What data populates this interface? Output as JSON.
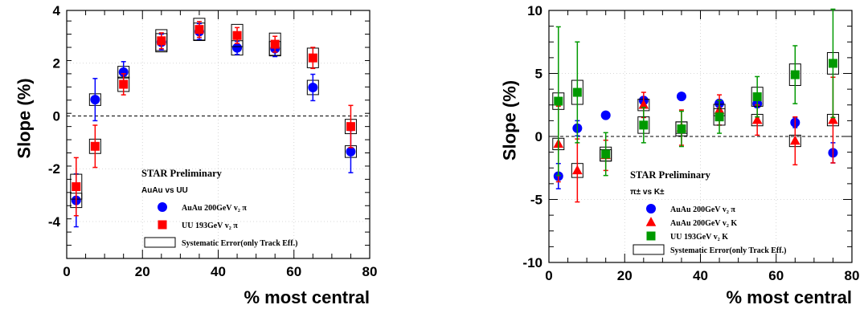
{
  "chart_data": [
    {
      "type": "scatter",
      "xlabel": "% most central",
      "ylabel": "Slope (%)",
      "xlim": [
        0,
        80
      ],
      "ylim": [
        -5.4,
        4
      ],
      "xticks": [
        "0",
        "20",
        "40",
        "60",
        "80"
      ],
      "yticks": [
        "-4",
        "-2",
        "0",
        "2",
        "4"
      ],
      "legend": {
        "title": "STAR Preliminary",
        "subtitle": "AuAu vs UU",
        "placement": "bottom-center",
        "items": [
          {
            "label": "AuAu 200GeV v₂ π",
            "marker": "circle",
            "color": "#0000ff"
          },
          {
            "label": "UU 193GeV v₂ π",
            "marker": "square",
            "color": "#ff0000"
          },
          {
            "label": "Systematic Error(only Track Eff.)",
            "marker": "box",
            "color": "#000000"
          }
        ]
      },
      "series": [
        {
          "name": "AuAu 200GeV v₂ π",
          "marker": "circle",
          "color": "#0000ff",
          "x": [
            2.5,
            7.5,
            15,
            25,
            35,
            45,
            55,
            65,
            75
          ],
          "y": [
            -3.2,
            0.62,
            1.66,
            2.8,
            3.2,
            2.58,
            2.55,
            1.08,
            -1.35
          ],
          "err": [
            1.0,
            0.8,
            0.4,
            0.3,
            0.3,
            0.25,
            0.3,
            0.5,
            0.8
          ],
          "sys": [
            0.15,
            0.1,
            0.1,
            0.2,
            0.2,
            0.15,
            0.15,
            0.15,
            0.1
          ]
        },
        {
          "name": "UU 193GeV v₂ π",
          "marker": "square",
          "color": "#ff0000",
          "x": [
            2.5,
            7.5,
            15,
            25,
            35,
            45,
            55,
            65,
            75
          ],
          "y": [
            -2.68,
            -1.15,
            1.2,
            2.85,
            3.28,
            3.05,
            2.72,
            2.2,
            -0.4
          ],
          "err": [
            1.1,
            0.8,
            0.4,
            0.3,
            0.3,
            0.3,
            0.3,
            0.4,
            0.8
          ],
          "sys": [
            0.35,
            0.15,
            0.15,
            0.3,
            0.3,
            0.3,
            0.3,
            0.25,
            0.15
          ]
        }
      ]
    },
    {
      "type": "scatter",
      "xlabel": "% most central",
      "ylabel": "Slope (%)",
      "xlim": [
        0,
        80
      ],
      "ylim": [
        -10,
        10
      ],
      "xticks": [
        "0",
        "20",
        "40",
        "60",
        "80"
      ],
      "yticks": [
        "-10",
        "-5",
        "0",
        "5",
        "10"
      ],
      "legend": {
        "title": "STAR Preliminary",
        "subtitle": "π± vs K±",
        "placement": "bottom-center",
        "items": [
          {
            "label": "AuAu 200GeV v₂ π",
            "marker": "circle",
            "color": "#0000ff"
          },
          {
            "label": "AuAu 200GeV v₂ K",
            "marker": "triangle",
            "color": "#ff0000"
          },
          {
            "label": "UU 193GeV v₂ K",
            "marker": "square",
            "color": "#009900"
          },
          {
            "label": "Systematic Error(only Track Eff.)",
            "marker": "box",
            "color": "#000000"
          }
        ]
      },
      "series": [
        {
          "name": "AuAu 200GeV v₂ π",
          "marker": "circle",
          "color": "#0000ff",
          "x": [
            2.5,
            7.5,
            15,
            25,
            35,
            45,
            55,
            65,
            75
          ],
          "y": [
            -3.15,
            0.65,
            1.68,
            2.85,
            3.18,
            2.62,
            2.6,
            1.1,
            -1.3
          ],
          "err": [
            1.0,
            0.6,
            0.2,
            0.3,
            0.2,
            0.3,
            0.3,
            0.4,
            0.8
          ],
          "sys": [
            0,
            0,
            0,
            0,
            0,
            0,
            0,
            0,
            0
          ]
        },
        {
          "name": "AuAu 200GeV v₂ K",
          "marker": "triangle",
          "color": "#ff0000",
          "x": [
            2.5,
            7.5,
            15,
            25,
            35,
            45,
            55,
            65,
            75
          ],
          "y": [
            -0.6,
            -2.7,
            -1.5,
            2.5,
            0.7,
            2.1,
            1.3,
            -0.35,
            1.3
          ],
          "err": [
            3.0,
            2.5,
            1.2,
            1.0,
            1.4,
            1.2,
            1.2,
            1.9,
            3.4
          ],
          "sys": [
            0.2,
            0.3,
            0.2,
            0.2,
            0.2,
            0.2,
            0.2,
            0.2,
            0.2
          ]
        },
        {
          "name": "UU 193GeV v₂ K",
          "marker": "square",
          "color": "#009900",
          "x": [
            2.5,
            7.5,
            15,
            25,
            35,
            45,
            55,
            65,
            75
          ],
          "y": [
            2.8,
            3.5,
            -1.4,
            0.9,
            0.6,
            1.55,
            3.15,
            4.9,
            5.8
          ],
          "err": [
            5.9,
            4.0,
            1.7,
            1.4,
            1.4,
            1.3,
            1.6,
            2.3,
            4.3
          ],
          "sys": [
            0.4,
            0.7,
            0.3,
            0.4,
            0.3,
            0.4,
            0.5,
            0.6,
            0.6
          ]
        }
      ]
    }
  ]
}
